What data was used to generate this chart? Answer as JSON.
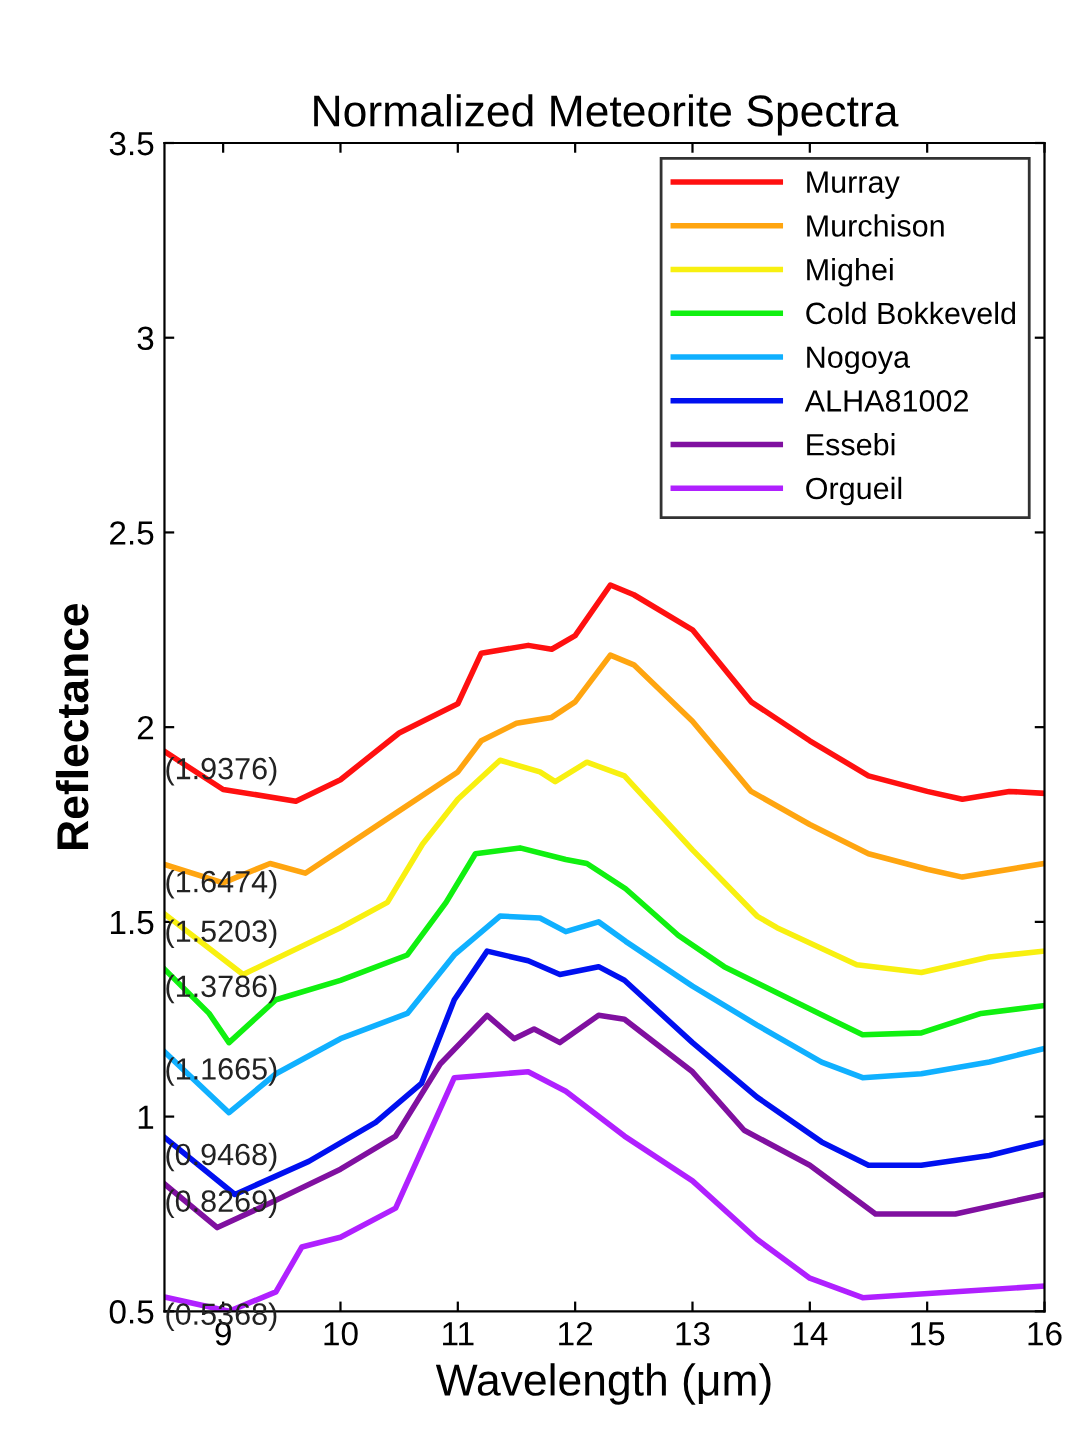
{
  "chart_data": {
    "type": "line",
    "title": "Normalized Meteorite Spectra",
    "xlabel": "Wavelength (μm)",
    "ylabel": "Reflectance",
    "xlim": [
      8.5,
      16
    ],
    "xticks": [
      9,
      10,
      11,
      12,
      13,
      14,
      15,
      16
    ],
    "ylim": [
      0.5,
      3.5
    ],
    "yticks": [
      0.5,
      1,
      1.5,
      2,
      2.5,
      3,
      3.5
    ],
    "grid": false,
    "legend": "top right",
    "line_style": "solid",
    "marker": "none",
    "series": [
      {
        "name": "Orgueil",
        "color": "#b020ff",
        "x": [
          8.5,
          9.05,
          9.45,
          9.67,
          10,
          10.47,
          10.97,
          11.6,
          11.92,
          12.42,
          13.0,
          13.55,
          14.0,
          14.45,
          15.24,
          16
        ],
        "values": [
          0.5368,
          0.5,
          0.55,
          0.665,
          0.69,
          0.765,
          1.1,
          1.115,
          1.065,
          0.95,
          0.835,
          0.685,
          0.585,
          0.535,
          0.55,
          0.565
        ]
      },
      {
        "name": "Essebi",
        "color": "#8010a0",
        "x": [
          8.5,
          8.95,
          9.45,
          10,
          10.47,
          10.85,
          11.25,
          11.48,
          11.65,
          11.87,
          12.2,
          12.42,
          13.0,
          13.44,
          14.0,
          14.56,
          15.24,
          16
        ],
        "values": [
          0.8269,
          0.715,
          0.785,
          0.865,
          0.95,
          1.135,
          1.26,
          1.2,
          1.225,
          1.19,
          1.26,
          1.25,
          1.115,
          0.965,
          0.875,
          0.75,
          0.75,
          0.8
        ]
      },
      {
        "name": "ALHA81002",
        "color": "#0010f0",
        "x": [
          8.5,
          9.1,
          9.73,
          10.3,
          10.69,
          10.97,
          11.25,
          11.6,
          11.87,
          12.2,
          12.42,
          13.0,
          13.55,
          14.1,
          14.5,
          14.95,
          15.53,
          16
        ],
        "values": [
          0.9468,
          0.8,
          0.885,
          0.985,
          1.085,
          1.3,
          1.425,
          1.4,
          1.365,
          1.385,
          1.35,
          1.19,
          1.05,
          0.935,
          0.875,
          0.875,
          0.9,
          0.935
        ]
      },
      {
        "name": "Nogoya",
        "color": "#10b0ff",
        "x": [
          8.5,
          9.05,
          9.45,
          10,
          10.57,
          10.97,
          11.36,
          11.7,
          11.92,
          12.2,
          12.43,
          13.0,
          13.55,
          14.1,
          14.45,
          14.95,
          15.53,
          16
        ],
        "values": [
          1.1665,
          1.01,
          1.11,
          1.2,
          1.265,
          1.415,
          1.515,
          1.51,
          1.475,
          1.5,
          1.45,
          1.335,
          1.235,
          1.14,
          1.1,
          1.11,
          1.14,
          1.175
        ]
      },
      {
        "name": "Cold Bokkeveld",
        "color": "#10f010",
        "x": [
          8.5,
          8.88,
          9.05,
          9.45,
          10,
          10.57,
          10.9,
          11.15,
          11.53,
          11.92,
          12.1,
          12.43,
          12.88,
          13.27,
          13.94,
          14.45,
          14.95,
          15.46,
          16
        ],
        "values": [
          1.3786,
          1.265,
          1.19,
          1.3,
          1.35,
          1.415,
          1.55,
          1.675,
          1.69,
          1.66,
          1.65,
          1.585,
          1.465,
          1.385,
          1.285,
          1.21,
          1.215,
          1.265,
          1.285
        ]
      },
      {
        "name": "Mighei",
        "color": "#f8f010",
        "x": [
          8.5,
          9.17,
          10,
          10.4,
          10.7,
          11,
          11.36,
          11.7,
          11.83,
          12.1,
          12.42,
          13.0,
          13.55,
          13.72,
          14.4,
          14.95,
          15.53,
          16
        ],
        "values": [
          1.5203,
          1.365,
          1.485,
          1.55,
          1.7,
          1.815,
          1.915,
          1.885,
          1.86,
          1.91,
          1.875,
          1.685,
          1.515,
          1.485,
          1.39,
          1.37,
          1.41,
          1.425
        ]
      },
      {
        "name": "Murchison",
        "color": "#ffa510",
        "x": [
          8.5,
          9,
          9.4,
          9.7,
          10,
          10.5,
          11,
          11.2,
          11.5,
          11.8,
          12,
          12.3,
          12.5,
          13,
          13.5,
          14,
          14.5,
          15,
          15.3,
          16
        ],
        "values": [
          1.6474,
          1.6,
          1.65,
          1.625,
          1.685,
          1.785,
          1.885,
          1.965,
          2.01,
          2.025,
          2.065,
          2.185,
          2.16,
          2.015,
          1.835,
          1.75,
          1.675,
          1.635,
          1.615,
          1.65
        ]
      },
      {
        "name": "Murray",
        "color": "#ff1010",
        "x": [
          8.5,
          9,
          9.62,
          10,
          10.5,
          11,
          11.2,
          11.6,
          11.8,
          12,
          12.3,
          12.5,
          13,
          13.5,
          14,
          14.5,
          15,
          15.3,
          15.7,
          16
        ],
        "values": [
          1.9376,
          1.84,
          1.81,
          1.865,
          1.985,
          2.06,
          2.19,
          2.21,
          2.2,
          2.235,
          2.365,
          2.34,
          2.25,
          2.065,
          1.965,
          1.875,
          1.835,
          1.815,
          1.835,
          1.83
        ]
      }
    ],
    "annotations": [
      "(0.5368)",
      "(0.8269)",
      "(0.9468)",
      "(1.1665)",
      "(1.3786)",
      "(1.5203)",
      "(1.6474)",
      "(1.9376)"
    ]
  }
}
